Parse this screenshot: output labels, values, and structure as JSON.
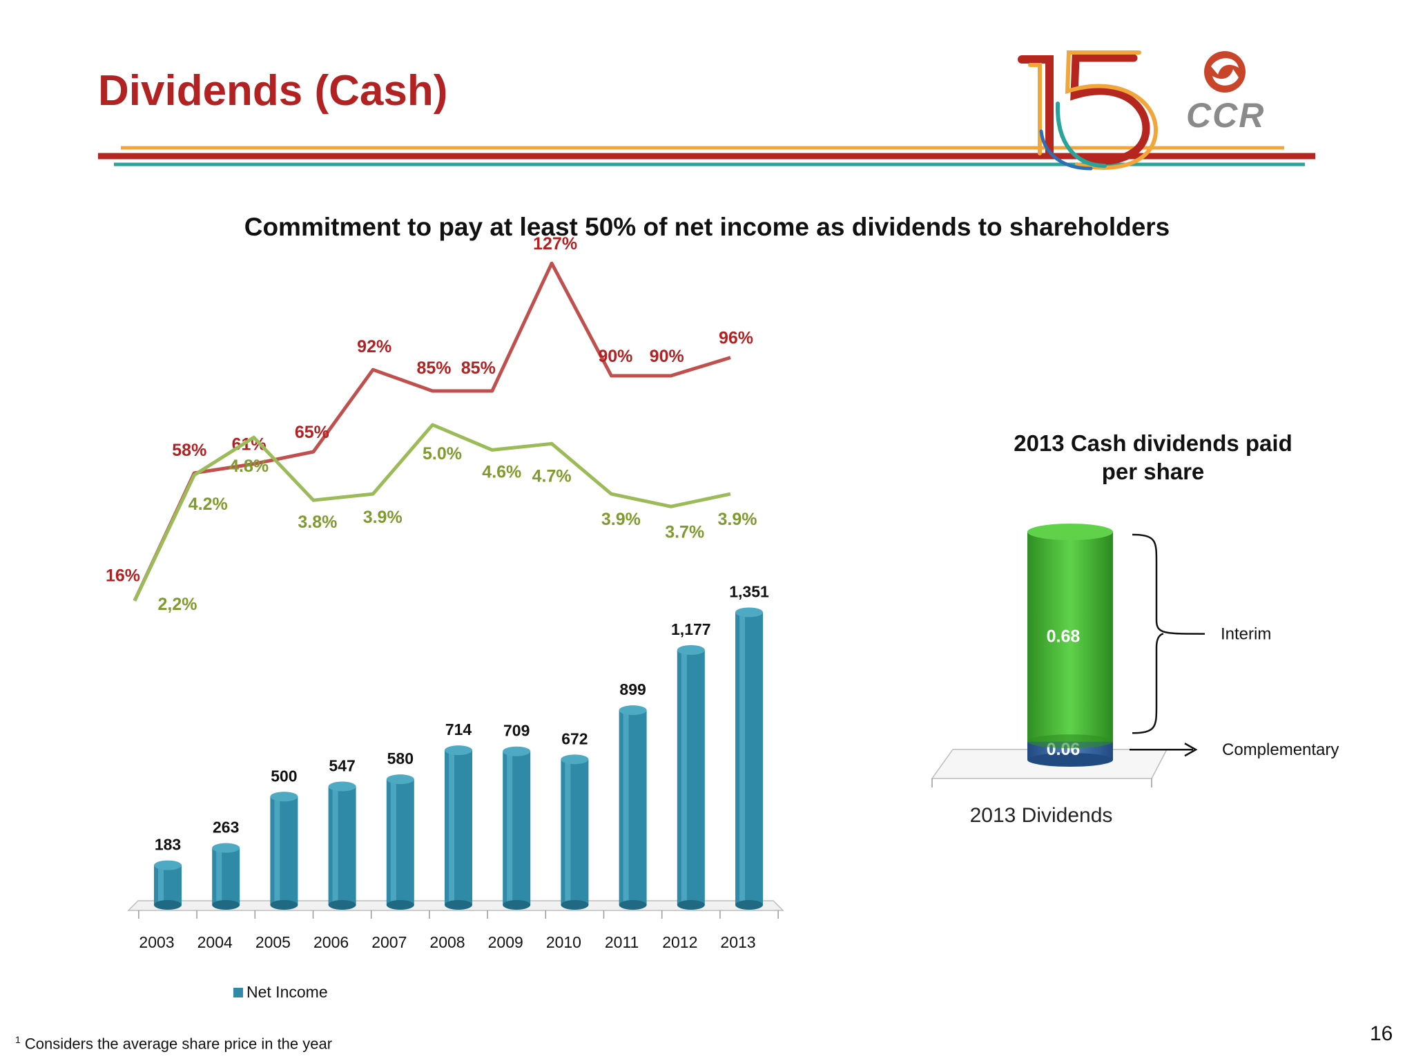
{
  "header": {
    "title": "Dividends (Cash)",
    "logo_text": "CCR",
    "logo_badge": "15"
  },
  "subtitle": "Commitment to pay at least 50% of net income as dividends to shareholders",
  "colors": {
    "title": "#b22222",
    "bar": "#2e8aa6",
    "payout_line": "#c0504d",
    "yield_line": "#9bbb59",
    "interim": "#3dae2b",
    "complementary": "#2f5f9a"
  },
  "chart_data": [
    {
      "type": "bar",
      "categories": [
        "2003",
        "2004",
        "2005",
        "2006",
        "2007",
        "2008",
        "2009",
        "2010",
        "2011",
        "2012",
        "2013"
      ],
      "series": [
        {
          "name": "Net Income",
          "values": [
            183,
            263,
            500,
            547,
            580,
            714,
            709,
            672,
            899,
            1177,
            1351
          ],
          "labels": [
            "183",
            "263",
            "500",
            "547",
            "580",
            "714",
            "709",
            "672",
            "899",
            "1,177",
            "1,351"
          ]
        }
      ],
      "legend": "bottom-left"
    },
    {
      "type": "line",
      "categories": [
        "2003",
        "2004",
        "2005",
        "2006",
        "2007",
        "2008",
        "2009",
        "2010",
        "2011",
        "2012",
        "2013"
      ],
      "series": [
        {
          "values": [
            16,
            58,
            61,
            65,
            92,
            85,
            85,
            127,
            90,
            90,
            96
          ],
          "labels": [
            "16%",
            "58%",
            "61%",
            "65%",
            "92%",
            "85%",
            "85%",
            "127%",
            "90%",
            "90%",
            "96%"
          ]
        },
        {
          "values": [
            2.2,
            4.2,
            4.8,
            3.8,
            3.9,
            5.0,
            4.6,
            4.7,
            3.9,
            3.7,
            3.9
          ],
          "labels": [
            "2,2%",
            "4.2%",
            "4.8%",
            "3.8%",
            "3.9%",
            "5.0%",
            "4.6%",
            "4.7%",
            "3.9%",
            "3.7%",
            "3.9%"
          ]
        }
      ]
    },
    {
      "type": "bar",
      "title": "2013 Cash dividends paid per share",
      "categories": [
        "2013 Dividends"
      ],
      "series": [
        {
          "name": "Complementary",
          "values": [
            0.06
          ],
          "label": "0.06"
        },
        {
          "name": "Interim",
          "values": [
            0.68
          ],
          "label": "0.68"
        }
      ],
      "stacked": true
    }
  ],
  "footnote": {
    "marker": "1",
    "text": "Considers the average share price in the year"
  },
  "page_number": "16"
}
